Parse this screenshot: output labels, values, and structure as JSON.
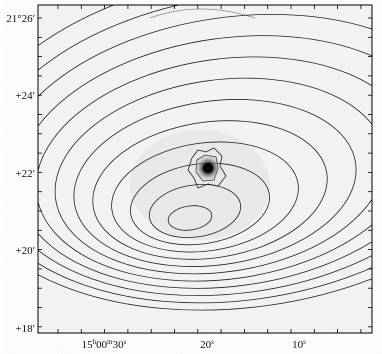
{
  "figure": {
    "y_ticks": [
      "21°26′",
      "+24′",
      "+22′",
      "+20′",
      "+18′"
    ],
    "x_ticks": [
      [
        {
          "text": "15"
        },
        {
          "text": "h",
          "sup": true
        },
        {
          "text": "00"
        },
        {
          "text": "m",
          "sup": true
        },
        {
          "text": "30"
        },
        {
          "text": "s",
          "sup": true
        }
      ],
      [
        {
          "text": "20"
        },
        {
          "text": "s",
          "sup": true
        }
      ],
      [
        {
          "text": "10"
        },
        {
          "text": "s",
          "sup": true
        }
      ]
    ]
  }
}
